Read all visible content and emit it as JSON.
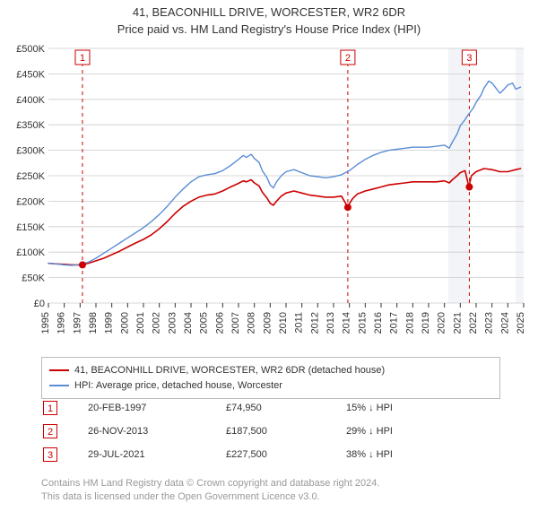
{
  "title_main": "41, BEACONHILL DRIVE, WORCESTER, WR2 6DR",
  "title_sub": "Price paid vs. HM Land Registry's House Price Index (HPI)",
  "chart": {
    "type": "line",
    "plot_bg_color": "#ffffff",
    "highlight_bg_color": "#f2f4f7",
    "grid_color": "#cccccc",
    "axis_color": "#333333",
    "marker_line_color": "#cc0000",
    "marker_line_dash": "4,4",
    "y": {
      "min": 0,
      "max": 500,
      "ticks": [
        0,
        50,
        100,
        150,
        200,
        250,
        300,
        350,
        400,
        450,
        500
      ],
      "tick_labels": [
        "£0",
        "£50K",
        "£100K",
        "£150K",
        "£200K",
        "£250K",
        "£300K",
        "£350K",
        "£400K",
        "£450K",
        "£500K"
      ],
      "label_fontsize": 11
    },
    "x": {
      "min": 1995,
      "max": 2025,
      "ticks": [
        1995,
        1996,
        1997,
        1998,
        1999,
        2000,
        2001,
        2002,
        2003,
        2004,
        2005,
        2006,
        2007,
        2008,
        2009,
        2010,
        2011,
        2012,
        2013,
        2014,
        2015,
        2016,
        2017,
        2018,
        2019,
        2020,
        2021,
        2022,
        2023,
        2024,
        2025
      ],
      "tick_labels": [
        "1995",
        "1996",
        "1997",
        "1998",
        "1999",
        "2000",
        "2001",
        "2002",
        "2003",
        "2004",
        "2005",
        "2006",
        "2007",
        "2008",
        "2009",
        "2010",
        "2011",
        "2012",
        "2013",
        "2014",
        "2015",
        "2016",
        "2017",
        "2018",
        "2019",
        "2020",
        "2021",
        "2022",
        "2023",
        "2024",
        "2025"
      ],
      "label_fontsize": 11
    },
    "highlight_ranges": [
      {
        "from": 2020.25,
        "to": 2021.5
      },
      {
        "from": 2024.5,
        "to": 2025.0
      }
    ],
    "series": [
      {
        "name": "property",
        "color": "#cc0000",
        "width": 1.6,
        "data": [
          [
            1995.0,
            78
          ],
          [
            1995.5,
            77
          ],
          [
            1996.0,
            76
          ],
          [
            1996.5,
            75
          ],
          [
            1997.1,
            75
          ],
          [
            1997.5,
            78
          ],
          [
            1998.0,
            83
          ],
          [
            1998.5,
            88
          ],
          [
            1999.0,
            95
          ],
          [
            1999.5,
            102
          ],
          [
            2000.0,
            110
          ],
          [
            2000.5,
            118
          ],
          [
            2001.0,
            125
          ],
          [
            2001.5,
            134
          ],
          [
            2002.0,
            146
          ],
          [
            2002.5,
            160
          ],
          [
            2003.0,
            176
          ],
          [
            2003.5,
            190
          ],
          [
            2004.0,
            200
          ],
          [
            2004.5,
            208
          ],
          [
            2005.0,
            212
          ],
          [
            2005.5,
            214
          ],
          [
            2006.0,
            220
          ],
          [
            2006.5,
            228
          ],
          [
            2007.0,
            235
          ],
          [
            2007.3,
            240
          ],
          [
            2007.5,
            238
          ],
          [
            2007.8,
            242
          ],
          [
            2008.0,
            236
          ],
          [
            2008.3,
            230
          ],
          [
            2008.5,
            218
          ],
          [
            2008.8,
            206
          ],
          [
            2009.0,
            196
          ],
          [
            2009.2,
            192
          ],
          [
            2009.4,
            200
          ],
          [
            2009.7,
            210
          ],
          [
            2010.0,
            216
          ],
          [
            2010.5,
            220
          ],
          [
            2011.0,
            216
          ],
          [
            2011.5,
            212
          ],
          [
            2012.0,
            210
          ],
          [
            2012.5,
            208
          ],
          [
            2013.0,
            208
          ],
          [
            2013.5,
            210
          ],
          [
            2013.9,
            188
          ],
          [
            2014.0,
            195
          ],
          [
            2014.2,
            205
          ],
          [
            2014.5,
            214
          ],
          [
            2015.0,
            220
          ],
          [
            2015.5,
            224
          ],
          [
            2016.0,
            228
          ],
          [
            2016.5,
            232
          ],
          [
            2017.0,
            234
          ],
          [
            2017.5,
            236
          ],
          [
            2018.0,
            238
          ],
          [
            2018.5,
            238
          ],
          [
            2019.0,
            238
          ],
          [
            2019.5,
            238
          ],
          [
            2020.0,
            240
          ],
          [
            2020.3,
            236
          ],
          [
            2020.5,
            242
          ],
          [
            2020.8,
            250
          ],
          [
            2021.0,
            256
          ],
          [
            2021.3,
            260
          ],
          [
            2021.55,
            228
          ],
          [
            2021.7,
            250
          ],
          [
            2022.0,
            258
          ],
          [
            2022.5,
            264
          ],
          [
            2023.0,
            262
          ],
          [
            2023.5,
            258
          ],
          [
            2024.0,
            258
          ],
          [
            2024.5,
            262
          ],
          [
            2024.8,
            264
          ]
        ]
      },
      {
        "name": "hpi",
        "color": "#5b8dd6",
        "width": 1.4,
        "data": [
          [
            1995.0,
            78
          ],
          [
            1995.5,
            77
          ],
          [
            1996.0,
            75
          ],
          [
            1996.5,
            74
          ],
          [
            1997.0,
            76
          ],
          [
            1997.5,
            80
          ],
          [
            1998.0,
            88
          ],
          [
            1998.5,
            98
          ],
          [
            1999.0,
            108
          ],
          [
            1999.5,
            118
          ],
          [
            2000.0,
            128
          ],
          [
            2000.5,
            138
          ],
          [
            2001.0,
            148
          ],
          [
            2001.5,
            160
          ],
          [
            2002.0,
            174
          ],
          [
            2002.5,
            190
          ],
          [
            2003.0,
            208
          ],
          [
            2003.5,
            224
          ],
          [
            2004.0,
            238
          ],
          [
            2004.5,
            248
          ],
          [
            2005.0,
            252
          ],
          [
            2005.5,
            254
          ],
          [
            2006.0,
            260
          ],
          [
            2006.5,
            270
          ],
          [
            2007.0,
            282
          ],
          [
            2007.3,
            290
          ],
          [
            2007.5,
            286
          ],
          [
            2007.8,
            292
          ],
          [
            2008.0,
            284
          ],
          [
            2008.3,
            276
          ],
          [
            2008.5,
            260
          ],
          [
            2008.8,
            246
          ],
          [
            2009.0,
            232
          ],
          [
            2009.2,
            226
          ],
          [
            2009.4,
            238
          ],
          [
            2009.7,
            250
          ],
          [
            2010.0,
            258
          ],
          [
            2010.5,
            262
          ],
          [
            2011.0,
            256
          ],
          [
            2011.5,
            250
          ],
          [
            2012.0,
            248
          ],
          [
            2012.5,
            246
          ],
          [
            2013.0,
            248
          ],
          [
            2013.5,
            252
          ],
          [
            2014.0,
            260
          ],
          [
            2014.5,
            272
          ],
          [
            2015.0,
            282
          ],
          [
            2015.5,
            290
          ],
          [
            2016.0,
            296
          ],
          [
            2016.5,
            300
          ],
          [
            2017.0,
            302
          ],
          [
            2017.5,
            304
          ],
          [
            2018.0,
            306
          ],
          [
            2018.5,
            306
          ],
          [
            2019.0,
            306
          ],
          [
            2019.5,
            308
          ],
          [
            2020.0,
            310
          ],
          [
            2020.3,
            304
          ],
          [
            2020.5,
            316
          ],
          [
            2020.8,
            332
          ],
          [
            2021.0,
            348
          ],
          [
            2021.3,
            360
          ],
          [
            2021.5,
            370
          ],
          [
            2021.8,
            382
          ],
          [
            2022.0,
            394
          ],
          [
            2022.3,
            408
          ],
          [
            2022.5,
            422
          ],
          [
            2022.8,
            436
          ],
          [
            2023.0,
            432
          ],
          [
            2023.3,
            420
          ],
          [
            2023.5,
            412
          ],
          [
            2023.7,
            418
          ],
          [
            2024.0,
            428
          ],
          [
            2024.3,
            432
          ],
          [
            2024.5,
            420
          ],
          [
            2024.8,
            424
          ]
        ]
      }
    ],
    "sale_markers": [
      {
        "idx": "1",
        "year": 1997.15,
        "price_k": 75
      },
      {
        "idx": "2",
        "year": 2013.9,
        "price_k": 188
      },
      {
        "idx": "3",
        "year": 2021.57,
        "price_k": 228
      }
    ],
    "marker_point_color": "#cc0000",
    "marker_point_radius": 4
  },
  "legend": {
    "items": [
      {
        "color": "#cc0000",
        "label": "41, BEACONHILL DRIVE, WORCESTER, WR2 6DR (detached house)"
      },
      {
        "color": "#5b8dd6",
        "label": "HPI: Average price, detached house, Worcester"
      }
    ]
  },
  "markers_table": [
    {
      "idx": "1",
      "date": "20-FEB-1997",
      "price": "£74,950",
      "diff": "15% ↓ HPI"
    },
    {
      "idx": "2",
      "date": "26-NOV-2013",
      "price": "£187,500",
      "diff": "29% ↓ HPI"
    },
    {
      "idx": "3",
      "date": "29-JUL-2021",
      "price": "£227,500",
      "diff": "38% ↓ HPI"
    }
  ],
  "footer": {
    "line1": "Contains HM Land Registry data © Crown copyright and database right 2024.",
    "line2": "This data is licensed under the Open Government Licence v3.0."
  },
  "colors": {
    "marker_border": "#cc0000",
    "footer_text": "#999999"
  }
}
